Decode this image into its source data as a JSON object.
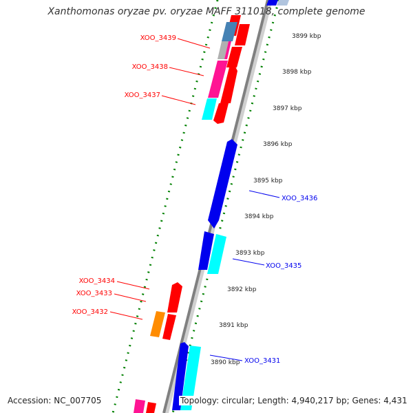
{
  "title": "Xanthomonas oryzae pv. oryzae MAFF 311018, complete genome",
  "footer": {
    "accession": "Accession: NC_007705",
    "summary": "Topology: circular; Length: 4,940,217 bp; Genes: 4,431"
  },
  "colors": {
    "red": "#ff0000",
    "blue": "#0000ee",
    "cyan": "#00ffff",
    "magenta": "#ff1493",
    "orange": "#ff8c00",
    "steelblue": "#4682b4",
    "backbone": "#808080",
    "ticks": "#008000"
  },
  "ticks": [
    {
      "label": "3899 kbp"
    },
    {
      "label": "3898 kbp"
    },
    {
      "label": "3897 kbp"
    },
    {
      "label": "3896 kbp"
    },
    {
      "label": "3895 kbp"
    },
    {
      "label": "3894 kbp"
    },
    {
      "label": "3893 kbp"
    },
    {
      "label": "3892 kbp"
    },
    {
      "label": "3891 kbp"
    },
    {
      "label": "3890 kbp"
    }
  ],
  "genes": [
    {
      "label": "XOO_3439",
      "color": "red"
    },
    {
      "label": "XOO_3438",
      "color": "red"
    },
    {
      "label": "XOO_3437",
      "color": "red"
    },
    {
      "label": "XOO_3436",
      "color": "blue"
    },
    {
      "label": "XOO_3435",
      "color": "blue"
    },
    {
      "label": "XOO_3434",
      "color": "red"
    },
    {
      "label": "XOO_3433",
      "color": "red"
    },
    {
      "label": "XOO_3432",
      "color": "red"
    },
    {
      "label": "XOO_3431",
      "color": "blue"
    }
  ]
}
